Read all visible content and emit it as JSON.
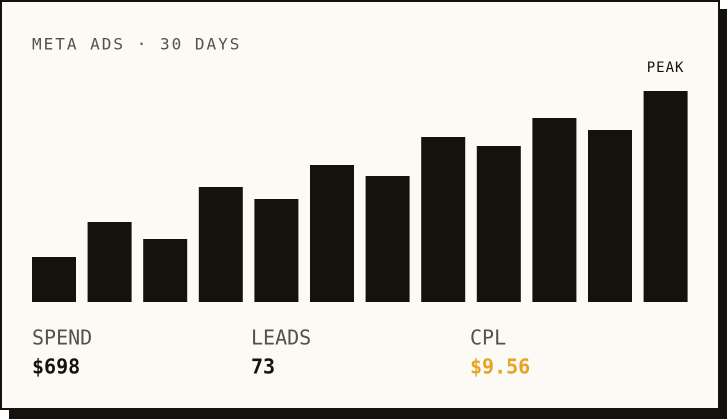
{
  "chart_data": {
    "type": "bar",
    "title": "META ADS · 30 DAYS",
    "values": [
      45,
      80,
      63,
      115,
      103,
      137,
      126,
      165,
      156,
      184,
      172,
      211
    ],
    "color": "#15110c",
    "ylim": [
      0,
      211
    ],
    "annotation": "PEAK",
    "stats": [
      {
        "label": "SPEND",
        "value": "$698",
        "color": "#15110c"
      },
      {
        "label": "LEADS",
        "value": "73",
        "color": "#15110c"
      },
      {
        "label": "CPL",
        "value": "$9.56",
        "color": "#e8a323"
      }
    ]
  }
}
